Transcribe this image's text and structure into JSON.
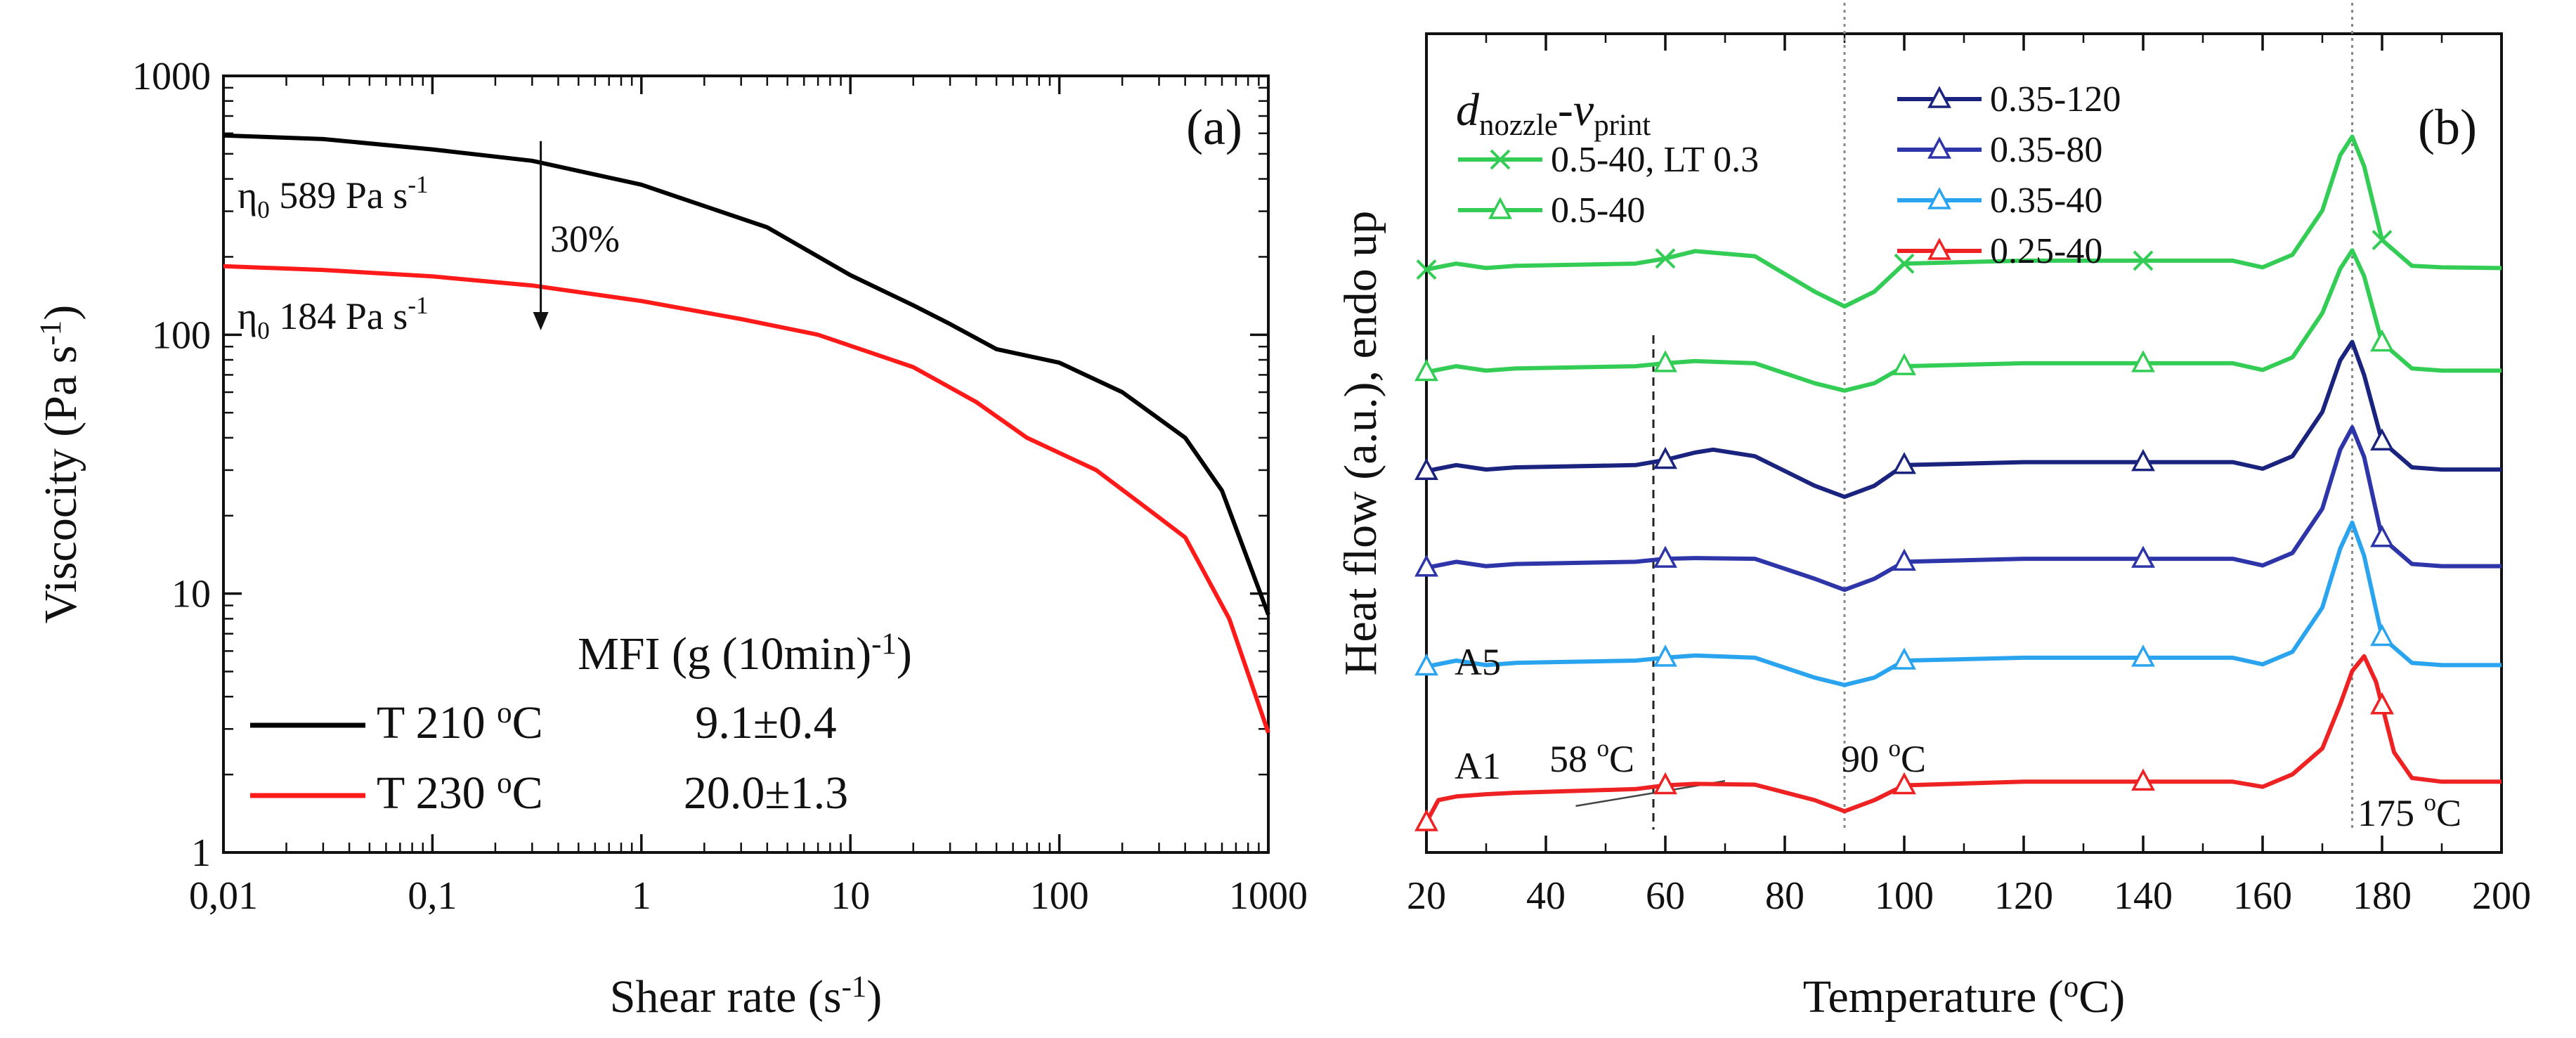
{
  "chart_data": [
    {
      "panel": "a",
      "type": "line",
      "panel_label": "(a)",
      "xlabel": "Shear rate (s-1)",
      "xlabel_parts": [
        "Shear rate (s",
        "-1",
        ")"
      ],
      "ylabel": "Viscocity (Pa s-1)",
      "ylabel_parts": [
        "Viscocity (Pa s",
        "-1",
        ")"
      ],
      "xscale": "log",
      "yscale": "log",
      "xlim": [
        0.01,
        1000
      ],
      "ylim": [
        1,
        1000
      ],
      "x_ticks": [
        0.01,
        0.1,
        1,
        10,
        100,
        1000
      ],
      "x_tick_labels": [
        "0,01",
        "0,1",
        "1",
        "10",
        "100",
        "1000"
      ],
      "y_ticks": [
        1,
        10,
        100,
        1000
      ],
      "y_tick_labels": [
        "1",
        "10",
        "100",
        "1000"
      ],
      "series": [
        {
          "name": "T 210 °C",
          "mfi": "9.1±0.4",
          "color": "#000000",
          "x": [
            0.01,
            0.03,
            0.1,
            0.3,
            1,
            1.5,
            4,
            10,
            20,
            30,
            50,
            100,
            200,
            400,
            600,
            1000
          ],
          "y": [
            589,
            570,
            520,
            470,
            380,
            340,
            260,
            170,
            130,
            110,
            88,
            78,
            60,
            40,
            25,
            8.3
          ]
        },
        {
          "name": "T 230 °C",
          "mfi": "20.0±1.3",
          "color": "#ff1a1a",
          "x": [
            0.01,
            0.03,
            0.1,
            0.3,
            1,
            3,
            7,
            20,
            40,
            70,
            150,
            250,
            400,
            650,
            1000
          ],
          "y": [
            184,
            178,
            168,
            155,
            135,
            115,
            100,
            75,
            55,
            40,
            30,
            22,
            16.5,
            8,
            2.9
          ]
        }
      ],
      "annotations": {
        "eta_black": {
          "sym": "η",
          "sub": "0",
          "text": "589 Pa s",
          "sup": "-1"
        },
        "eta_red": {
          "sym": "η",
          "sub": "0",
          "text": "184 Pa s",
          "sup": "-1"
        },
        "percent": "30%",
        "mfi_header": {
          "text": "MFI (g (10min)",
          "sup": "-1",
          "close": ")"
        }
      },
      "legend": [
        {
          "label": "T 210 ",
          "deg": "o",
          "unit": "C",
          "value": "9.1±0.4"
        },
        {
          "label": "T 230 ",
          "deg": "o",
          "unit": "C",
          "value": "20.0±1.3"
        }
      ]
    },
    {
      "panel": "b",
      "type": "line",
      "panel_label": "(b)",
      "xlabel": "Temperature (oC)",
      "xlabel_parts": [
        "Temperature (",
        "o",
        "C)"
      ],
      "ylabel": "Heat flow (a.u.), endo up",
      "xlim": [
        20,
        200
      ],
      "x_ticks": [
        20,
        40,
        60,
        80,
        100,
        120,
        140,
        160,
        180,
        200
      ],
      "x_tick_labels": [
        "20",
        "40",
        "60",
        "80",
        "100",
        "120",
        "140",
        "160",
        "180",
        "200"
      ],
      "ylim": [
        0,
        100
      ],
      "legend_title": {
        "d": "d",
        "d_sub": "nozzle",
        "dash": "-",
        "v": "v",
        "v_sub": "print"
      },
      "series": [
        {
          "name": "0.5-40, LT 0.3",
          "color": "#33cc55",
          "marker": "x",
          "offset": 74.9,
          "x": [
            20,
            25,
            30,
            35,
            55,
            60,
            65,
            75,
            85,
            90,
            95,
            100,
            120,
            140,
            155,
            160,
            165,
            170,
            173,
            175,
            177,
            180,
            185,
            190,
            200
          ],
          "y": [
            0,
            0.8,
            0.2,
            0.5,
            0.8,
            1.5,
            2.5,
            1.8,
            -3,
            -5,
            -3,
            0.8,
            1.2,
            1.2,
            1.2,
            0.3,
            2,
            8,
            15.5,
            18,
            14,
            4,
            0.5,
            0.3,
            0.2
          ]
        },
        {
          "name": "0.5-40",
          "color": "#33cc55",
          "marker": "triangle",
          "offset": 61,
          "x": [
            20,
            25,
            30,
            35,
            55,
            60,
            65,
            75,
            85,
            90,
            95,
            100,
            120,
            140,
            155,
            160,
            165,
            170,
            173,
            175,
            177,
            180,
            185,
            190,
            200
          ],
          "y": [
            0,
            0.8,
            0.2,
            0.5,
            0.8,
            1.2,
            1.5,
            1.2,
            -1.5,
            -2.5,
            -1.5,
            0.8,
            1.2,
            1.2,
            1.2,
            0.3,
            2,
            8,
            14,
            16.5,
            13,
            4,
            0.5,
            0.2,
            0.2
          ]
        },
        {
          "name": "0.35-120",
          "color": "#1a237e",
          "marker": "triangle",
          "offset": 47.6,
          "x": [
            20,
            25,
            30,
            35,
            55,
            60,
            65,
            68,
            75,
            85,
            90,
            95,
            100,
            120,
            140,
            155,
            160,
            165,
            170,
            173,
            175,
            177,
            180,
            185,
            190,
            200
          ],
          "y": [
            0,
            0.8,
            0.2,
            0.5,
            0.8,
            1.5,
            2.5,
            2.9,
            2,
            -2,
            -3.5,
            -2,
            0.8,
            1.2,
            1.2,
            1.2,
            0.3,
            2,
            8,
            15,
            17.5,
            13,
            4,
            0.5,
            0.2,
            0.2
          ]
        },
        {
          "name": "0.35-80",
          "color": "#2e35a8",
          "marker": "triangle",
          "offset": 34.5,
          "x": [
            20,
            25,
            30,
            35,
            55,
            60,
            65,
            75,
            85,
            90,
            95,
            100,
            120,
            140,
            155,
            160,
            165,
            170,
            173,
            175,
            177,
            180,
            185,
            190,
            200
          ],
          "y": [
            0,
            0.8,
            0.2,
            0.5,
            0.8,
            1.2,
            1.3,
            1.2,
            -1.5,
            -3,
            -1.5,
            0.8,
            1.2,
            1.2,
            1.2,
            0.3,
            2,
            8,
            16,
            19,
            15,
            4,
            0.5,
            0.2,
            0.2
          ]
        },
        {
          "name": "0.35-40",
          "color": "#2aa4ee",
          "marker": "triangle",
          "offset": 21.1,
          "x": [
            20,
            25,
            30,
            35,
            55,
            60,
            65,
            75,
            85,
            90,
            95,
            100,
            120,
            140,
            155,
            160,
            165,
            170,
            173,
            175,
            177,
            180,
            185,
            190,
            200
          ],
          "y": [
            0,
            0.8,
            0.2,
            0.5,
            0.8,
            1.2,
            1.5,
            1.2,
            -1.5,
            -2.5,
            -1.5,
            0.8,
            1.2,
            1.2,
            1.2,
            0.3,
            2,
            8,
            16,
            19.5,
            15,
            4,
            0.5,
            0.2,
            0.2
          ]
        },
        {
          "name": "0.25-40",
          "color": "#ee2222",
          "marker": "triangle",
          "offset": 0,
          "x": [
            20,
            22,
            25,
            30,
            35,
            55,
            60,
            65,
            75,
            85,
            90,
            95,
            100,
            120,
            140,
            155,
            160,
            165,
            170,
            173,
            175,
            177,
            179,
            182,
            185,
            190,
            200
          ],
          "y": [
            0,
            3,
            3.5,
            3.8,
            4,
            4.5,
            5,
            5.2,
            5.1,
            3,
            1.5,
            3,
            5,
            5.5,
            5.5,
            5.5,
            4.8,
            6.5,
            10,
            16,
            20.5,
            22.5,
            19,
            9.5,
            6,
            5.5,
            5.5
          ]
        }
      ],
      "reference_lines": [
        {
          "x": 58,
          "style": "dashed"
        },
        {
          "x": 90,
          "style": "dotted"
        },
        {
          "x": 175,
          "style": "dotted"
        }
      ],
      "annotations": {
        "a5": "A5",
        "a1": "A1",
        "t58": {
          "text": "58 ",
          "deg": "o",
          "unit": "C"
        },
        "t90": {
          "text": "90 ",
          "deg": "o",
          "unit": "C"
        },
        "t175": {
          "text": "175 ",
          "deg": "o",
          "unit": "C"
        }
      }
    }
  ]
}
